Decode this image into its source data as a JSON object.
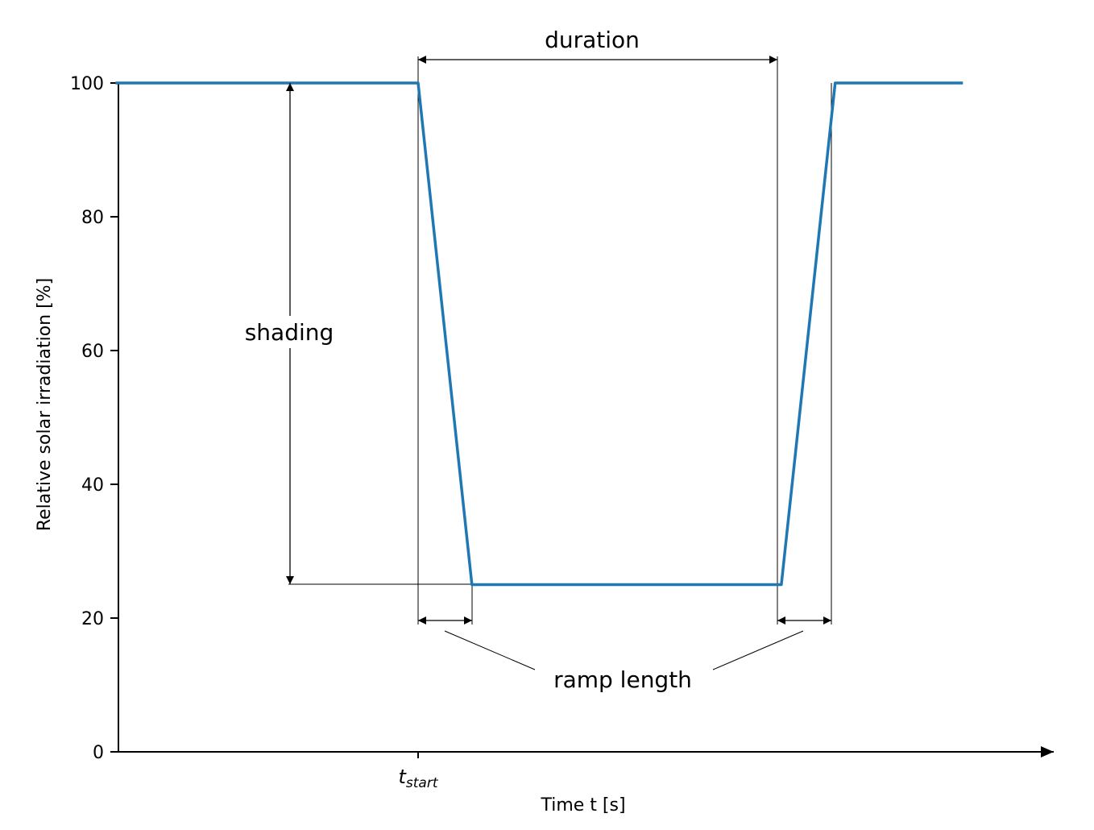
{
  "chart_data": {
    "type": "line",
    "title": "",
    "xlabel": "Time t [s]",
    "ylabel": "Relative solar irradiation [%]",
    "ylim": [
      0,
      100
    ],
    "yticks": [
      "0",
      "20",
      "40",
      "60",
      "80",
      "100"
    ],
    "xticks": [
      {
        "main": "t",
        "sub": "start"
      }
    ],
    "grid": false,
    "series": [
      {
        "color": "#1f77b4",
        "x": [
          -4.5,
          0,
          0.8,
          5.4,
          6.2,
          8.1
        ],
        "y": [
          100,
          100,
          25,
          25,
          100,
          100
        ]
      }
    ],
    "annotations": {
      "duration": "duration",
      "shading": "shading",
      "ramp_length": "ramp length"
    }
  }
}
